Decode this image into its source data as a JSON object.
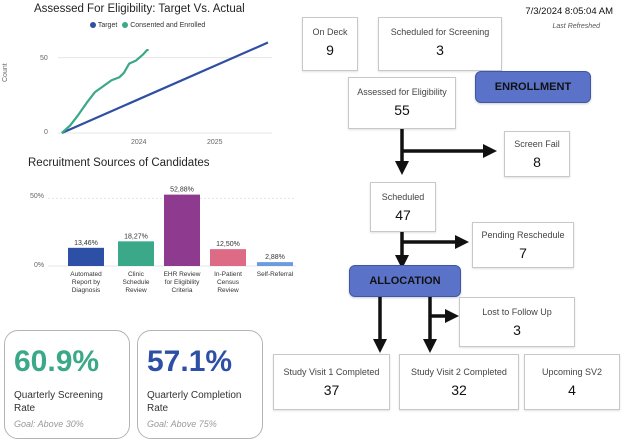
{
  "header": {
    "datetime": "7/3/2024 8:05:04 AM",
    "last_refreshed": "Last Refreshed"
  },
  "line_chart": {
    "title": "Assessed For Eligibility: Target Vs. Actual",
    "legend": [
      {
        "name": "Target",
        "color": "#2f4fa3"
      },
      {
        "name": "Consented and Enrolled",
        "color": "#3aa889"
      }
    ],
    "ylabel": "Count",
    "yticks": [
      "0",
      "50"
    ],
    "xticks": [
      "2024",
      "2025"
    ]
  },
  "bar_section": {
    "title": "Recruitment Sources of Candidates",
    "yticks": [
      "50%",
      "0%"
    ]
  },
  "chart_data": [
    {
      "type": "line",
      "title": "Assessed For Eligibility: Target Vs. Actual",
      "xlabel": "",
      "ylabel": "Count",
      "ylim": [
        0,
        65
      ],
      "xlim": [
        "2023-08-01",
        "2025-09-30"
      ],
      "series": [
        {
          "name": "Target",
          "color": "#2f4fa3",
          "points": [
            [
              "2023-08-15",
              0
            ],
            [
              "2025-09-15",
              60
            ]
          ]
        },
        {
          "name": "Consented and Enrolled",
          "color": "#3aa889",
          "points": [
            [
              "2023-08-15",
              0
            ],
            [
              "2023-09-15",
              5
            ],
            [
              "2023-10-15",
              12
            ],
            [
              "2023-11-15",
              20
            ],
            [
              "2023-12-15",
              27
            ],
            [
              "2024-01-15",
              31
            ],
            [
              "2024-02-15",
              35
            ],
            [
              "2024-03-15",
              37
            ],
            [
              "2024-04-01",
              40
            ],
            [
              "2024-04-20",
              46
            ],
            [
              "2024-05-15",
              48
            ],
            [
              "2024-06-10",
              52
            ],
            [
              "2024-06-25",
              55
            ],
            [
              "2024-07-01",
              55
            ]
          ]
        }
      ]
    },
    {
      "type": "bar",
      "title": "Recruitment Sources of Candidates",
      "ylim": [
        0,
        60
      ],
      "categories": [
        "Automated Report by Diagnosis",
        "Clinic Schedule Review",
        "EHR Review for Eligibility Criteria",
        "In-Patient Census Review",
        "Self-Referral"
      ],
      "values": [
        13.46,
        18.27,
        52.88,
        12.5,
        2.88
      ],
      "value_labels": [
        "13,46%",
        "18,27%",
        "52,88%",
        "12,50%",
        "2,88%"
      ],
      "colors": [
        "#2e4fa6",
        "#3aa889",
        "#8e3a8e",
        "#dd6b86",
        "#6c9be0"
      ]
    }
  ],
  "bar_categories": [
    [
      "Automated",
      "Report by",
      "Diagnosis"
    ],
    [
      "Clinic",
      "Schedule",
      "Review"
    ],
    [
      "EHR Review",
      "for Eligibility",
      "Criteria"
    ],
    [
      "In-Patient",
      "Census",
      "Review"
    ],
    [
      "Self-Referral"
    ]
  ],
  "kpis": {
    "screening": {
      "value": "60.9%",
      "name": "Quarterly Screening Rate",
      "goal": "Goal: Above 30%",
      "color": "#3aa889"
    },
    "completion": {
      "value": "57.1%",
      "name": "Quarterly Completion Rate",
      "goal": "Goal: Above 75%",
      "color": "#2e4fa6"
    }
  },
  "flow": {
    "on_deck": {
      "label": "On Deck",
      "value": "9"
    },
    "scheduled_screening": {
      "label": "Scheduled for Screening",
      "value": "3"
    },
    "assessed": {
      "label": "Assessed for Eligibility",
      "value": "55"
    },
    "enrollment": "ENROLLMENT",
    "screen_fail": {
      "label": "Screen Fail",
      "value": "8"
    },
    "scheduled": {
      "label": "Scheduled",
      "value": "47"
    },
    "pending": {
      "label": "Pending Reschedule",
      "value": "7"
    },
    "allocation": "ALLOCATION",
    "lost": {
      "label": "Lost to Follow Up",
      "value": "3"
    },
    "sv1": {
      "label": "Study Visit 1 Completed",
      "value": "37"
    },
    "sv2": {
      "label": "Study Visit 2 Completed",
      "value": "32"
    },
    "upcoming": {
      "label": "Upcoming SV2",
      "value": "4"
    }
  }
}
